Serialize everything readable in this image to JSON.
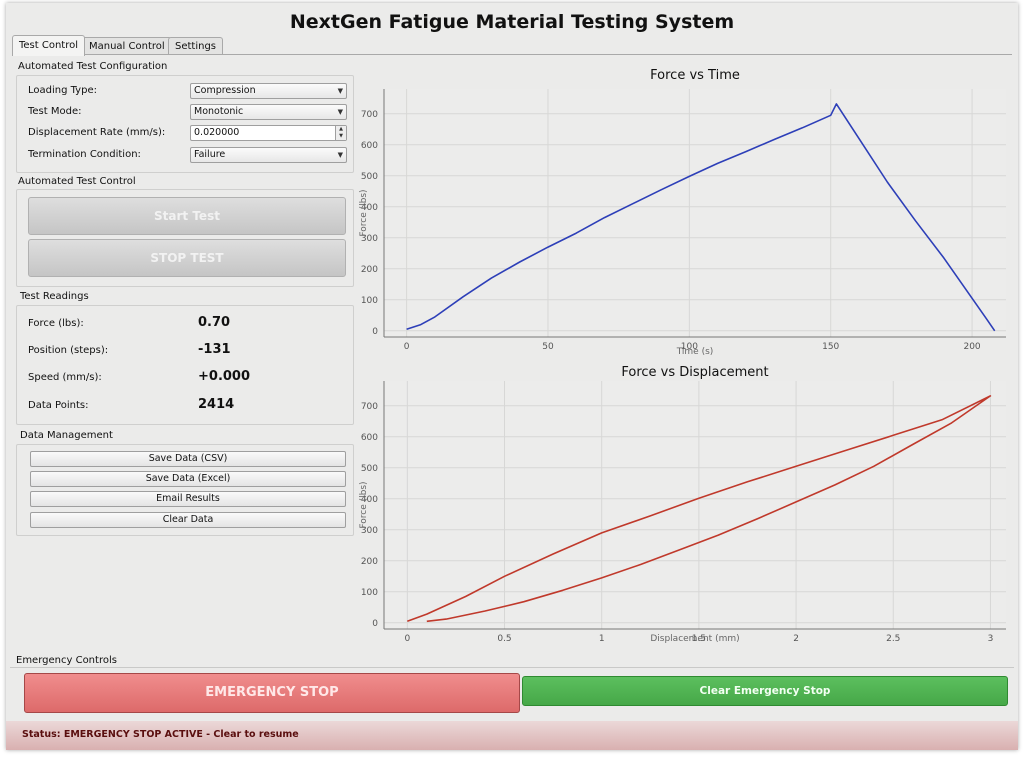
{
  "window": {
    "title": "NextGen Fatigue Material Testing System"
  },
  "tabs": [
    {
      "label": "Test Control",
      "active": true
    },
    {
      "label": "Manual Control",
      "active": false
    },
    {
      "label": "Settings",
      "active": false
    }
  ],
  "config": {
    "title": "Automated Test Configuration",
    "fields": [
      {
        "label": "Loading Type:",
        "value": "Compression",
        "widget": "select"
      },
      {
        "label": "Test Mode:",
        "value": "Monotonic",
        "widget": "select"
      },
      {
        "label": "Displacement Rate (mm/s):",
        "value": "0.020000",
        "widget": "spinbox"
      },
      {
        "label": "Termination Condition:",
        "value": "Failure",
        "widget": "select"
      }
    ]
  },
  "control": {
    "title": "Automated Test Control",
    "start_label": "Start Test",
    "stop_label": "STOP TEST"
  },
  "readings": {
    "title": "Test Readings",
    "items": [
      {
        "label": "Force (lbs):",
        "value": "0.70"
      },
      {
        "label": "Position (steps):",
        "value": "-131"
      },
      {
        "label": "Speed (mm/s):",
        "value": "+0.000"
      },
      {
        "label": "Data Points:",
        "value": "2414"
      }
    ]
  },
  "data_management": {
    "title": "Data Management",
    "buttons": [
      "Save Data (CSV)",
      "Save Data (Excel)",
      "Email Results",
      "Clear Data"
    ]
  },
  "emergency": {
    "title": "Emergency Controls",
    "stop_label": "EMERGENCY STOP",
    "clear_label": "Clear Emergency Stop"
  },
  "status": {
    "text": "Status: EMERGENCY STOP ACTIVE - Clear to resume"
  },
  "colors": {
    "force_time_line": "#2d3fb8",
    "force_disp_line": "#c0392b",
    "estop": "#e07272",
    "clear": "#4caf50"
  },
  "chart_data": [
    {
      "type": "line",
      "title": "Force vs Time",
      "xlabel": "Time (s)",
      "ylabel": "Force (lbs)",
      "xlim": [
        -8,
        212
      ],
      "ylim": [
        -20,
        780
      ],
      "xticks": [
        0,
        50,
        100,
        150,
        200
      ],
      "yticks": [
        0,
        100,
        200,
        300,
        400,
        500,
        600,
        700
      ],
      "grid": true,
      "series": [
        {
          "color": "#2d3fb8",
          "x": [
            0,
            5,
            10,
            20,
            30,
            40,
            50,
            60,
            70,
            80,
            90,
            100,
            110,
            120,
            130,
            140,
            150,
            152,
            160,
            170,
            180,
            190,
            200,
            205,
            208
          ],
          "y": [
            5,
            20,
            45,
            110,
            170,
            222,
            270,
            315,
            365,
            410,
            455,
            498,
            540,
            578,
            617,
            655,
            695,
            732,
            620,
            480,
            355,
            235,
            105,
            40,
            0
          ]
        }
      ]
    },
    {
      "type": "line",
      "title": "Force vs Displacement",
      "xlabel": "Displacement (mm)",
      "ylabel": "Force (lbs)",
      "xlim": [
        -0.12,
        3.08
      ],
      "ylim": [
        -20,
        780
      ],
      "xticks": [
        0,
        0.5,
        1.0,
        1.5,
        2.0,
        2.5,
        3.0
      ],
      "yticks": [
        0,
        100,
        200,
        300,
        400,
        500,
        600,
        700
      ],
      "grid": true,
      "series": [
        {
          "color": "#c0392b",
          "x": [
            0,
            0.1,
            0.3,
            0.5,
            0.75,
            1.0,
            1.25,
            1.5,
            1.75,
            2.0,
            2.25,
            2.5,
            2.75,
            3.0,
            2.8,
            2.6,
            2.4,
            2.2,
            2.0,
            1.8,
            1.6,
            1.4,
            1.2,
            1.0,
            0.8,
            0.6,
            0.4,
            0.2,
            0.1
          ],
          "y": [
            5,
            28,
            85,
            150,
            222,
            290,
            345,
            402,
            455,
            505,
            555,
            605,
            655,
            732,
            645,
            575,
            505,
            445,
            390,
            335,
            283,
            235,
            188,
            145,
            105,
            68,
            38,
            12,
            5
          ]
        }
      ]
    }
  ]
}
